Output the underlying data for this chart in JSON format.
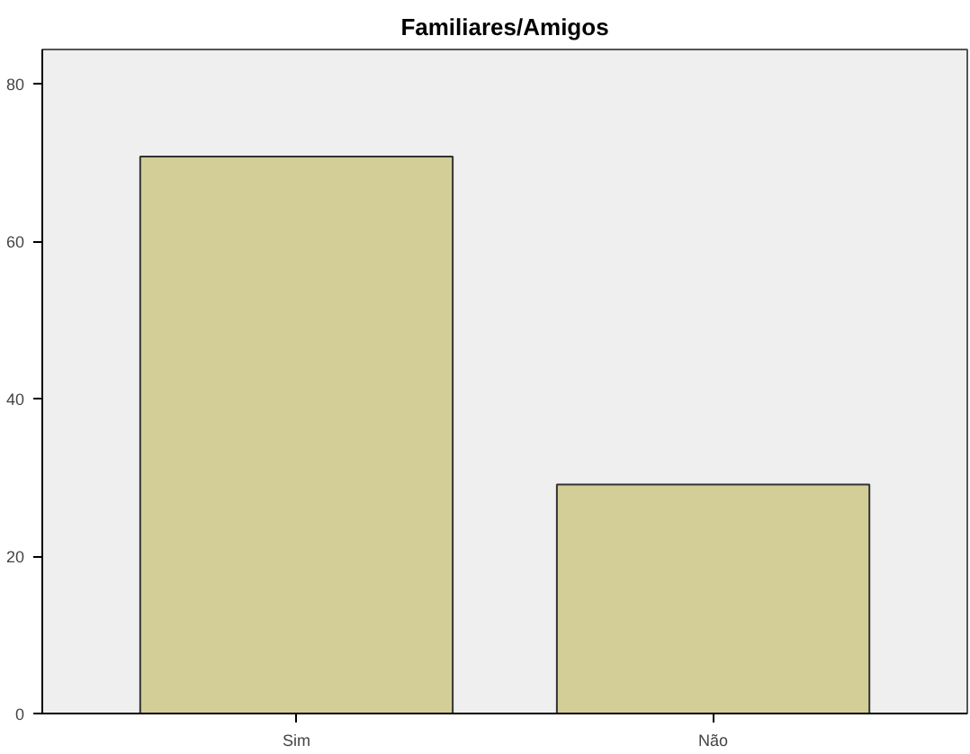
{
  "chart_data": {
    "type": "bar",
    "title": "Familiares/Amigos",
    "categories": [
      "Sim",
      "Não"
    ],
    "values": [
      70.8,
      29.1
    ],
    "color": "#d3ce97",
    "ylim": [
      0,
      84.4
    ],
    "yticks": [
      0,
      20,
      40,
      60,
      80
    ],
    "grid": false
  }
}
